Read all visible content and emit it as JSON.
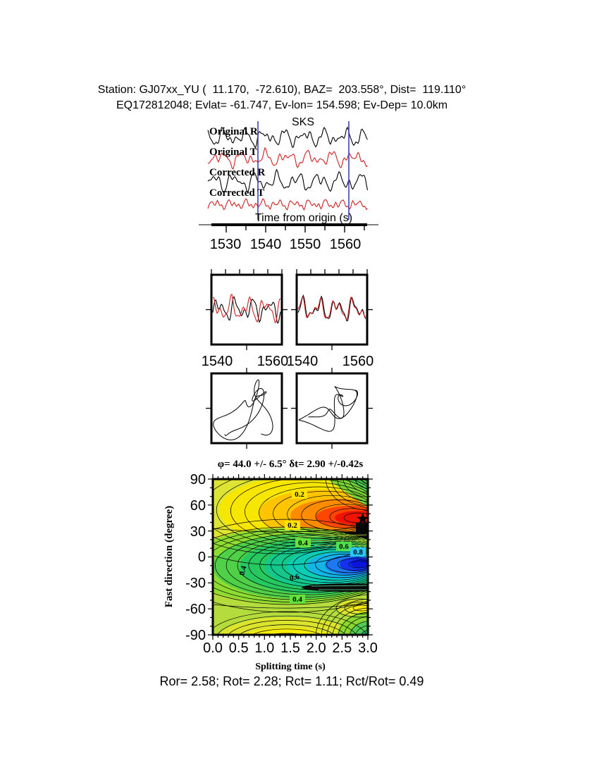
{
  "header": {
    "line1": "Station: GJ07xx_YU (  11.170,  -72.610), BAZ=  203.558°, Dist=  119.110°",
    "line2": "EQ172812048; Evlat= -61.747, Ev-lon= 154.598; Ev-Dep= 10.0km"
  },
  "waveform_panel": {
    "phase_label": "SKS",
    "phase_label_color": "#cc2222",
    "trace_labels": [
      "Original R",
      "Original T",
      "Corrected R",
      "Corrected T"
    ],
    "trace_colors": [
      "#000000",
      "#cc2222",
      "#000000",
      "#cc2222"
    ],
    "window_marker_color": "#3a46b4",
    "xlabel": "Time from origin (s)",
    "xticks": [
      "1530",
      "1540",
      "1550",
      "1560"
    ]
  },
  "comparison_panels": {
    "left_xticks": [
      "1540",
      "1560"
    ],
    "right_xticks": [
      "1540",
      "1560"
    ]
  },
  "contour_panel": {
    "title": "φ= 44.0 +/- 6.5° δt= 2.90 +/-0.42s",
    "ylabel": "Fast direction (degree)",
    "xlabel": "Splitting time (s)",
    "yticks": [
      "90",
      "60",
      "30",
      "0",
      "-30",
      "-60",
      "-90"
    ],
    "xticks": [
      "0.0",
      "0.5",
      "1.0",
      "1.5",
      "2.0",
      "2.5",
      "3.0"
    ],
    "contour_labels": [
      "0.2",
      "0.2",
      "0.4",
      "0.6",
      "0.8",
      "0.4",
      "0.6",
      "0.4"
    ]
  },
  "footer": {
    "results": "Ror= 2.58; Rot= 2.28; Rct= 1.11; Rct/Rot= 0.49",
    "values": {
      "Ror": 2.58,
      "Rot": 2.28,
      "Rct": 1.11,
      "Rct_over_Rot": 0.49
    }
  },
  "chart_data": [
    {
      "id": "seismograms",
      "type": "line",
      "series": [
        {
          "name": "Original R",
          "color": "#000000"
        },
        {
          "name": "Original T",
          "color": "#cc2222"
        },
        {
          "name": "Corrected R",
          "color": "#000000"
        },
        {
          "name": "Corrected T",
          "color": "#cc2222"
        }
      ],
      "xlabel": "Time from origin (s)",
      "xlim": [
        1526,
        1566
      ],
      "xticks": [
        1530,
        1540,
        1550,
        1560
      ],
      "annotations": [
        {
          "text": "SKS",
          "color": "#cc2222",
          "x": 1549
        },
        {
          "type": "analysis-window",
          "x_start": 1538,
          "x_end": 1561,
          "color": "#3a46b4"
        }
      ]
    },
    {
      "id": "window-waveforms-left",
      "type": "line",
      "series": [
        {
          "name": "R",
          "color": "#000000"
        },
        {
          "name": "T",
          "color": "#cc2222"
        }
      ],
      "xticks": [
        1540,
        1560
      ]
    },
    {
      "id": "window-waveforms-right",
      "type": "line",
      "series": [
        {
          "name": "R corrected",
          "color": "#000000"
        },
        {
          "name": "T corrected",
          "color": "#cc2222"
        }
      ],
      "xticks": [
        1540,
        1560
      ]
    },
    {
      "id": "particle-motion",
      "type": "scatter",
      "panels": 2,
      "description": "particle-motion hodograms (original left, corrected right)"
    },
    {
      "id": "error-surface",
      "type": "heatmap",
      "title": "φ= 44.0 +/- 6.5° δt= 2.90 +/-0.42s",
      "xlabel": "Splitting time (s)",
      "ylabel": "Fast direction (degree)",
      "xlim": [
        0,
        3
      ],
      "ylim": [
        -90,
        90
      ],
      "xticks": [
        0.0,
        0.5,
        1.0,
        1.5,
        2.0,
        2.5,
        3.0
      ],
      "yticks": [
        90,
        60,
        30,
        0,
        -30,
        -60,
        -90
      ],
      "contour_levels": [
        0.2,
        0.4,
        0.6,
        0.8
      ],
      "grid": false,
      "best_fit": {
        "fast_direction_deg": 44.0,
        "fast_direction_err_deg": 6.5,
        "splitting_time_s": 2.9,
        "splitting_time_err_s": 0.42,
        "marker": "star",
        "marker_x": 2.9,
        "marker_y": 44
      }
    }
  ]
}
